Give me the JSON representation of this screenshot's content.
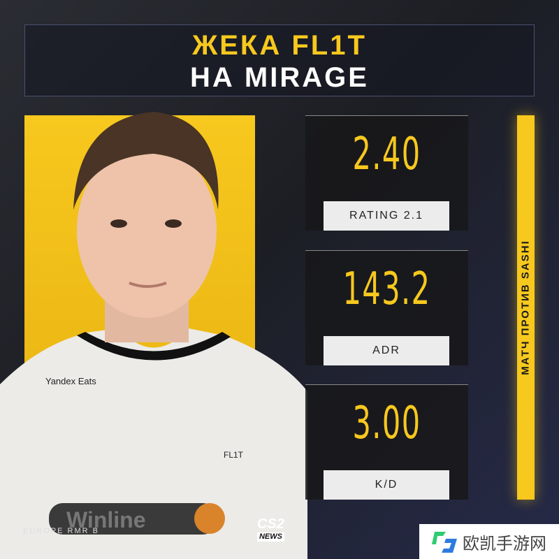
{
  "header": {
    "line1": "ЖЕКА FL1T",
    "line2": "НА MIRAGE"
  },
  "stats": [
    {
      "value": "2.40",
      "label": "RATING 2.1"
    },
    {
      "value": "143.2",
      "label": "ADR"
    },
    {
      "value": "3.00",
      "label": "K/D"
    }
  ],
  "side_banner": "МАТЧ ПРОТИВ SASHI",
  "footer": {
    "event": "EUROPE RMR B",
    "logo_top": "CS2",
    "logo_bottom": "NEWS"
  },
  "watermark": {
    "text": "欧凯手游网"
  },
  "jersey": {
    "sponsor1": "Yandex Eats",
    "sponsor2": "Winline",
    "player_tag": "FL1T"
  },
  "colors": {
    "accent": "#f7c81e",
    "background": "#1c1e24"
  }
}
